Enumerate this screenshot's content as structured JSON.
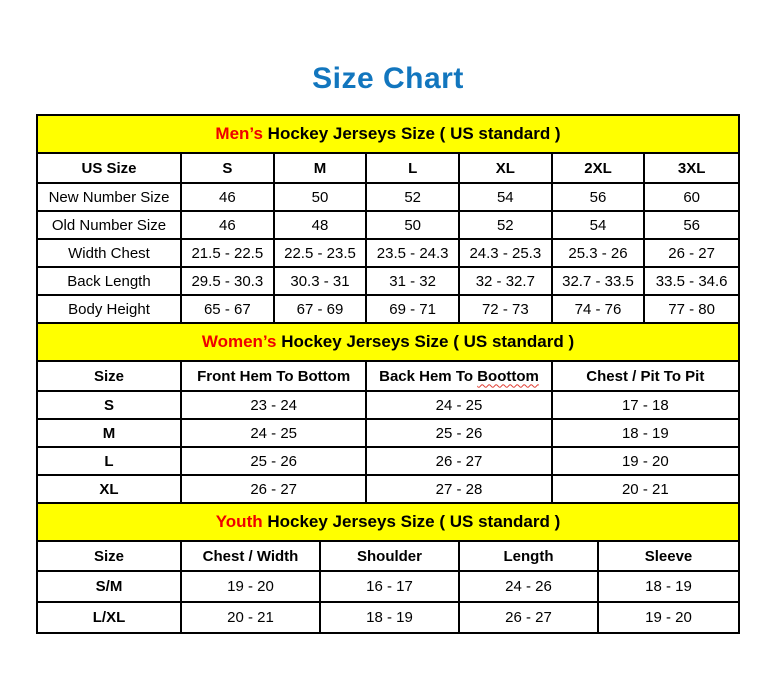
{
  "title": "Size Chart",
  "colors": {
    "title_blue": "#1276be",
    "band_yellow": "#ffff00",
    "accent_red": "#ee0000",
    "underline_red": "#e03c31"
  },
  "sections": [
    {
      "id": "mens",
      "band": {
        "highlight": "Men’s",
        "rest": " Hockey Jerseys Size ( US standard )"
      },
      "columns": [
        "US Size",
        "S",
        "M",
        "L",
        "XL",
        "2XL",
        "3XL"
      ],
      "rows": [
        {
          "label": "New Number Size",
          "values": [
            "46",
            "50",
            "52",
            "54",
            "56",
            "60"
          ]
        },
        {
          "label": "Old Number Size",
          "values": [
            "46",
            "48",
            "50",
            "52",
            "54",
            "56"
          ]
        },
        {
          "label": "Width Chest",
          "values": [
            "21.5 - 22.5",
            "22.5 - 23.5",
            "23.5 - 24.3",
            "24.3 - 25.3",
            "25.3 - 26",
            "26 - 27"
          ]
        },
        {
          "label": "Back Length",
          "values": [
            "29.5 - 30.3",
            "30.3 - 31",
            "31 - 32",
            "32 - 32.7",
            "32.7 - 33.5",
            "33.5 - 34.6"
          ]
        },
        {
          "label": "Body Height",
          "values": [
            "65 - 67",
            "67 - 69",
            "69 - 71",
            "72 - 73",
            "74 - 76",
            "77 - 80"
          ]
        }
      ]
    },
    {
      "id": "womens",
      "band": {
        "highlight": "Women’s",
        "rest": " Hockey Jerseys Size ( US standard )"
      },
      "columns": [
        "Size",
        "Front Hem To Bottom",
        "Back Hem To Boottom",
        "Chest / Pit To Pit"
      ],
      "misspell": {
        "prefix": "Back Hem To ",
        "word": "Boottom"
      },
      "rows": [
        {
          "label": "S",
          "values": [
            "23 - 24",
            "24 - 25",
            "17 - 18"
          ]
        },
        {
          "label": "M",
          "values": [
            "24 - 25",
            "25 - 26",
            "18 - 19"
          ]
        },
        {
          "label": "L",
          "values": [
            "25 - 26",
            "26 - 27",
            "19 - 20"
          ]
        },
        {
          "label": "XL",
          "values": [
            "26 - 27",
            "27 - 28",
            "20 - 21"
          ]
        }
      ]
    },
    {
      "id": "youth",
      "band": {
        "highlight": "Youth",
        "rest": " Hockey Jerseys Size ( US standard )"
      },
      "columns": [
        "Size",
        "Chest / Width",
        "Shoulder",
        "Length",
        "Sleeve"
      ],
      "rows": [
        {
          "label": "S/M",
          "values": [
            "19 - 20",
            "16 - 17",
            "24 - 26",
            "18 - 19"
          ]
        },
        {
          "label": "L/XL",
          "values": [
            "20 - 21",
            "18 - 19",
            "26 - 27",
            "19 - 20"
          ]
        }
      ]
    }
  ]
}
